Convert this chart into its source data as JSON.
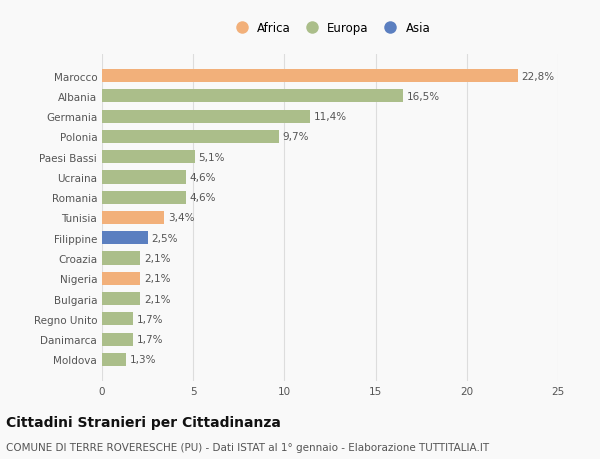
{
  "categories": [
    "Marocco",
    "Albania",
    "Germania",
    "Polonia",
    "Paesi Bassi",
    "Ucraina",
    "Romania",
    "Tunisia",
    "Filippine",
    "Croazia",
    "Nigeria",
    "Bulgaria",
    "Regno Unito",
    "Danimarca",
    "Moldova"
  ],
  "values": [
    22.8,
    16.5,
    11.4,
    9.7,
    5.1,
    4.6,
    4.6,
    3.4,
    2.5,
    2.1,
    2.1,
    2.1,
    1.7,
    1.7,
    1.3
  ],
  "continents": [
    "Africa",
    "Europa",
    "Europa",
    "Europa",
    "Europa",
    "Europa",
    "Europa",
    "Africa",
    "Asia",
    "Europa",
    "Africa",
    "Europa",
    "Europa",
    "Europa",
    "Europa"
  ],
  "colors": {
    "Africa": "#F2B07A",
    "Europa": "#ABBE8A",
    "Asia": "#5B7FC0"
  },
  "legend_labels": [
    "Africa",
    "Europa",
    "Asia"
  ],
  "legend_colors": [
    "#F2B07A",
    "#ABBE8A",
    "#5B7FC0"
  ],
  "xlim": [
    0,
    25
  ],
  "xticks": [
    0,
    5,
    10,
    15,
    20,
    25
  ],
  "title": "Cittadini Stranieri per Cittadinanza",
  "subtitle": "COMUNE DI TERRE ROVERESCHE (PU) - Dati ISTAT al 1° gennaio - Elaborazione TUTTITALIA.IT",
  "background_color": "#f9f9f9",
  "grid_color": "#dddddd",
  "bar_height": 0.65,
  "label_fontsize": 7.5,
  "tick_fontsize": 7.5,
  "title_fontsize": 10,
  "subtitle_fontsize": 7.5
}
